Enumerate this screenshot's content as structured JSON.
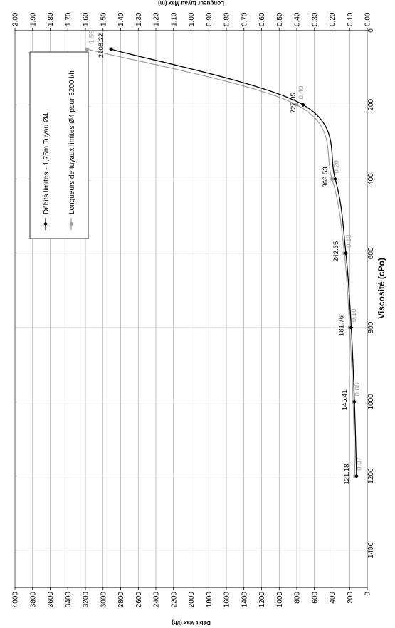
{
  "chart_data": {
    "type": "line",
    "orientation": "rotated-90",
    "x_axis": {
      "label": "Viscosité (cPo)",
      "range": [
        0,
        1500
      ],
      "ticks": [
        0,
        200,
        400,
        600,
        800,
        1000,
        1200,
        1400
      ]
    },
    "y_primary": {
      "label": "Débit Max (l/h)",
      "range": [
        0,
        4000
      ],
      "ticks": [
        0,
        200,
        400,
        600,
        800,
        1000,
        1200,
        1400,
        1600,
        1800,
        2000,
        2200,
        2400,
        2600,
        2800,
        3000,
        3200,
        3400,
        3600,
        3800,
        4000
      ]
    },
    "y_secondary": {
      "label": "Longueur tuyau Max (m)",
      "range": [
        0,
        2
      ],
      "ticks": [
        "0.00",
        "0.10",
        "0.20",
        "0.30",
        "0.40",
        "0.50",
        "0.60",
        "0.70",
        "0.80",
        "0.90",
        "1.00",
        "1.10",
        "1.20",
        "1.30",
        "1.40",
        "1.50",
        "1.60",
        "1.70",
        "1.80",
        "1.90",
        "2.00"
      ]
    },
    "grid": true,
    "legend_position": "top-left",
    "series": [
      {
        "name": "Débits limites - 1,75m Tuyau Ø4",
        "axis": "primary",
        "color": "#000000",
        "marker": "diamond",
        "x": [
          50,
          200,
          400,
          600,
          800,
          1000,
          1200
        ],
        "y": [
          2908.22,
          727.05,
          363.53,
          242.35,
          181.76,
          145.41,
          121.18
        ],
        "labels": [
          "2908.22",
          "727.05",
          "363.53",
          "242.35",
          "181.76",
          "145.41",
          "121.18"
        ]
      },
      {
        "name": "Longueurs de tuyaux limites Ø4 pour 3200 l/h",
        "axis": "secondary",
        "color": "#9a9a9a",
        "marker": "square",
        "x": [
          50,
          200,
          400,
          600,
          800,
          1000,
          1200
        ],
        "y": [
          1.59,
          0.4,
          0.2,
          0.13,
          0.1,
          0.08,
          0.07
        ],
        "labels": [
          "1.59",
          "0.40",
          "0.20",
          "0.13",
          "0.10",
          "0.08",
          "0.07"
        ]
      }
    ]
  }
}
